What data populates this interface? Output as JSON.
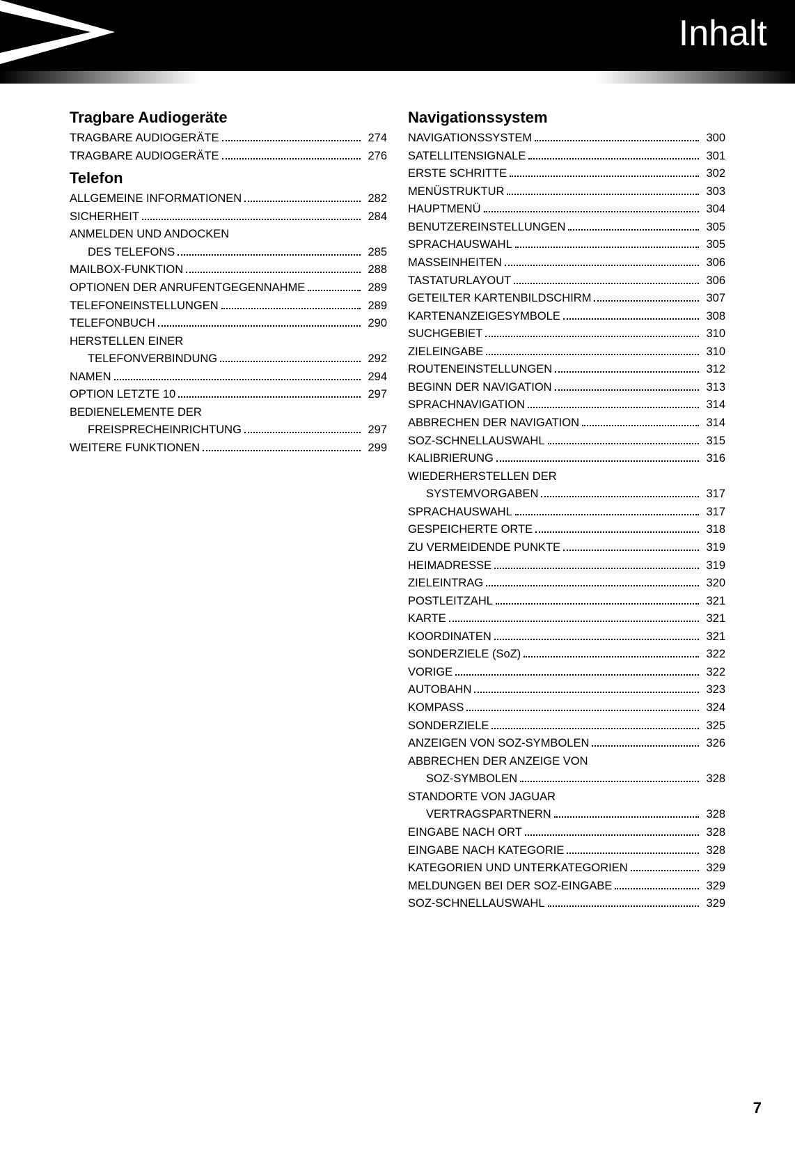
{
  "header": {
    "title": "Inhalt",
    "title_color": "#ffffff",
    "band_color": "#000000",
    "title_fontsize": 52
  },
  "page_number": "7",
  "columns": {
    "left": {
      "sections": [
        {
          "title": "Tragbare Audiogeräte",
          "entries": [
            {
              "label": "TRAGBARE AUDIOGERÄTE",
              "page": "274"
            },
            {
              "label": "TRAGBARE AUDIOGERÄTE",
              "page": "276"
            }
          ]
        },
        {
          "title": "Telefon",
          "entries": [
            {
              "label": "ALLGEMEINE INFORMATIONEN",
              "page": "282"
            },
            {
              "label": "SICHERHEIT",
              "page": "284"
            },
            {
              "label": "ANMELDEN UND ANDOCKEN",
              "cont": true
            },
            {
              "label": "DES TELEFONS",
              "page": "285",
              "indent": true
            },
            {
              "label": "MAILBOX-FUNKTION",
              "page": "288"
            },
            {
              "label": "OPTIONEN DER ANRUFENTGEGENNAHME",
              "page": "289"
            },
            {
              "label": "TELEFONEINSTELLUNGEN",
              "page": "289"
            },
            {
              "label": "TELEFONBUCH",
              "page": "290"
            },
            {
              "label": "HERSTELLEN EINER",
              "cont": true
            },
            {
              "label": "TELEFONVERBINDUNG",
              "page": "292",
              "indent": true
            },
            {
              "label": "NAMEN",
              "page": "294"
            },
            {
              "label": "OPTION LETZTE 10",
              "page": "297"
            },
            {
              "label": "BEDIENELEMENTE DER",
              "cont": true
            },
            {
              "label": "FREISPRECHEINRICHTUNG",
              "page": "297",
              "indent": true
            },
            {
              "label": "WEITERE FUNKTIONEN",
              "page": "299"
            }
          ]
        }
      ]
    },
    "right": {
      "sections": [
        {
          "title": "Navigationssystem",
          "entries": [
            {
              "label": "NAVIGATIONSSYSTEM",
              "page": "300"
            },
            {
              "label": "SATELLITENSIGNALE",
              "page": "301"
            },
            {
              "label": "ERSTE SCHRITTE",
              "page": "302"
            },
            {
              "label": "MENÜSTRUKTUR",
              "page": "303"
            },
            {
              "label": "HAUPTMENÜ",
              "page": "304"
            },
            {
              "label": "BENUTZEREINSTELLUNGEN",
              "page": "305"
            },
            {
              "label": "SPRACHAUSWAHL",
              "page": "305"
            },
            {
              "label": "MASSEINHEITEN",
              "page": "306"
            },
            {
              "label": "TASTATURLAYOUT",
              "page": "306"
            },
            {
              "label": "GETEILTER KARTENBILDSCHIRM",
              "page": "307"
            },
            {
              "label": "KARTENANZEIGESYMBOLE",
              "page": "308"
            },
            {
              "label": "SUCHGEBIET",
              "page": "310"
            },
            {
              "label": "ZIELEINGABE",
              "page": "310"
            },
            {
              "label": "ROUTENEINSTELLUNGEN",
              "page": "312"
            },
            {
              "label": "BEGINN DER NAVIGATION",
              "page": "313"
            },
            {
              "label": "SPRACHNAVIGATION",
              "page": "314"
            },
            {
              "label": "ABBRECHEN DER NAVIGATION",
              "page": "314"
            },
            {
              "label": "SOZ-SCHNELLAUSWAHL",
              "page": "315"
            },
            {
              "label": "KALIBRIERUNG",
              "page": "316"
            },
            {
              "label": "WIEDERHERSTELLEN DER",
              "cont": true
            },
            {
              "label": "SYSTEMVORGABEN",
              "page": "317",
              "indent": true
            },
            {
              "label": "SPRACHAUSWAHL",
              "page": "317"
            },
            {
              "label": "GESPEICHERTE ORTE",
              "page": "318"
            },
            {
              "label": "ZU VERMEIDENDE PUNKTE",
              "page": "319"
            },
            {
              "label": "HEIMADRESSE",
              "page": "319"
            },
            {
              "label": "ZIELEINTRAG",
              "page": "320"
            },
            {
              "label": "POSTLEITZAHL",
              "page": "321"
            },
            {
              "label": "KARTE",
              "page": "321"
            },
            {
              "label": "KOORDINATEN",
              "page": "321"
            },
            {
              "label": "SONDERZIELE (SoZ)",
              "page": "322"
            },
            {
              "label": "VORIGE",
              "page": "322"
            },
            {
              "label": "AUTOBAHN",
              "page": "323"
            },
            {
              "label": "KOMPASS",
              "page": "324"
            },
            {
              "label": "SONDERZIELE",
              "page": "325"
            },
            {
              "label": "ANZEIGEN VON SOZ-SYMBOLEN",
              "page": "326"
            },
            {
              "label": "ABBRECHEN DER ANZEIGE VON",
              "cont": true
            },
            {
              "label": "SOZ-SYMBOLEN",
              "page": "328",
              "indent": true
            },
            {
              "label": "STANDORTE VON JAGUAR",
              "cont": true
            },
            {
              "label": "VERTRAGSPARTNERN",
              "page": "328",
              "indent": true
            },
            {
              "label": "EINGABE NACH ORT",
              "page": "328"
            },
            {
              "label": "EINGABE NACH KATEGORIE",
              "page": "328"
            },
            {
              "label": "KATEGORIEN UND UNTERKATEGORIEN",
              "page": "329"
            },
            {
              "label": "MELDUNGEN BEI DER SOZ-EINGABE",
              "page": "329"
            },
            {
              "label": "SOZ-SCHNELLAUSWAHL",
              "page": "329"
            }
          ]
        }
      ]
    }
  },
  "style": {
    "body_font": "Arial",
    "entry_fontsize": 16.5,
    "section_title_fontsize": 22,
    "text_color": "#000000",
    "background_color": "#ffffff"
  }
}
